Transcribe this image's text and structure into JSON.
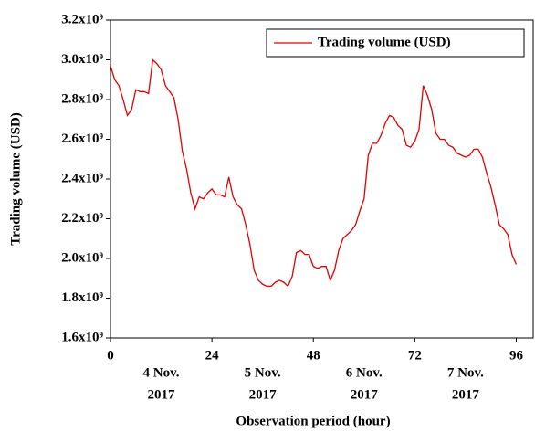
{
  "chart_data": {
    "type": "line",
    "xlabel": "Observation period (hour)",
    "ylabel": "Trading volume (USD)",
    "x": [
      0,
      1,
      2,
      3,
      4,
      5,
      6,
      7,
      8,
      9,
      10,
      11,
      12,
      13,
      14,
      15,
      16,
      17,
      18,
      19,
      20,
      21,
      22,
      23,
      24,
      25,
      26,
      27,
      28,
      29,
      30,
      31,
      32,
      33,
      34,
      35,
      36,
      37,
      38,
      39,
      40,
      41,
      42,
      43,
      44,
      45,
      46,
      47,
      48,
      49,
      50,
      51,
      52,
      53,
      54,
      55,
      56,
      57,
      58,
      59,
      60,
      61,
      62,
      63,
      64,
      65,
      66,
      67,
      68,
      69,
      70,
      71,
      72,
      73,
      74,
      75,
      76,
      77,
      78,
      79,
      80,
      81,
      82,
      83,
      84,
      85,
      86,
      87,
      88,
      89,
      90,
      91,
      92,
      93,
      94,
      95,
      96
    ],
    "series": [
      {
        "name": "Trading volume (USD)",
        "color": "#e00000",
        "values": [
          2970000000,
          2900000000,
          2870000000,
          2800000000,
          2720000000,
          2750000000,
          2850000000,
          2840000000,
          2840000000,
          2830000000,
          3000000000,
          2980000000,
          2950000000,
          2870000000,
          2840000000,
          2810000000,
          2700000000,
          2540000000,
          2450000000,
          2330000000,
          2250000000,
          2310000000,
          2300000000,
          2330000000,
          2350000000,
          2320000000,
          2320000000,
          2310000000,
          2410000000,
          2310000000,
          2270000000,
          2250000000,
          2170000000,
          2070000000,
          1940000000,
          1890000000,
          1870000000,
          1860000000,
          1860000000,
          1880000000,
          1890000000,
          1880000000,
          1860000000,
          1910000000,
          2030000000,
          2040000000,
          2020000000,
          2020000000,
          1960000000,
          1950000000,
          1960000000,
          1960000000,
          1890000000,
          1940000000,
          2040000000,
          2100000000,
          2120000000,
          2140000000,
          2170000000,
          2240000000,
          2300000000,
          2520000000,
          2580000000,
          2580000000,
          2620000000,
          2680000000,
          2720000000,
          2710000000,
          2670000000,
          2650000000,
          2570000000,
          2560000000,
          2590000000,
          2650000000,
          2870000000,
          2820000000,
          2750000000,
          2630000000,
          2600000000,
          2600000000,
          2570000000,
          2560000000,
          2530000000,
          2520000000,
          2510000000,
          2520000000,
          2550000000,
          2550000000,
          2510000000,
          2430000000,
          2360000000,
          2270000000,
          2170000000,
          2150000000,
          2120000000,
          2020000000,
          1970000000
        ]
      }
    ],
    "xlim": [
      0,
      100
    ],
    "xticks": [
      0,
      24,
      48,
      72,
      96
    ],
    "ylim": [
      1600000000,
      3200000000
    ],
    "yticks": [
      {
        "value": 1600000000,
        "label": "1.6x10⁹"
      },
      {
        "value": 1800000000,
        "label": "1.8x10⁹"
      },
      {
        "value": 2000000000,
        "label": "2.0x10⁹"
      },
      {
        "value": 2200000000,
        "label": "2.2x10⁹"
      },
      {
        "value": 2400000000,
        "label": "2.4x10⁹"
      },
      {
        "value": 2600000000,
        "label": "2.6x10⁹"
      },
      {
        "value": 2800000000,
        "label": "2.8x10⁹"
      },
      {
        "value": 3000000000,
        "label": "3.0x10⁹"
      },
      {
        "value": 3200000000,
        "label": "3.2x10⁹"
      }
    ],
    "date_labels": [
      [
        "4 Nov.",
        "2017"
      ],
      [
        "5 Nov.",
        "2017"
      ],
      [
        "6 Nov.",
        "2017"
      ],
      [
        "7 Nov.",
        "2017"
      ]
    ],
    "legend": "upper right"
  }
}
